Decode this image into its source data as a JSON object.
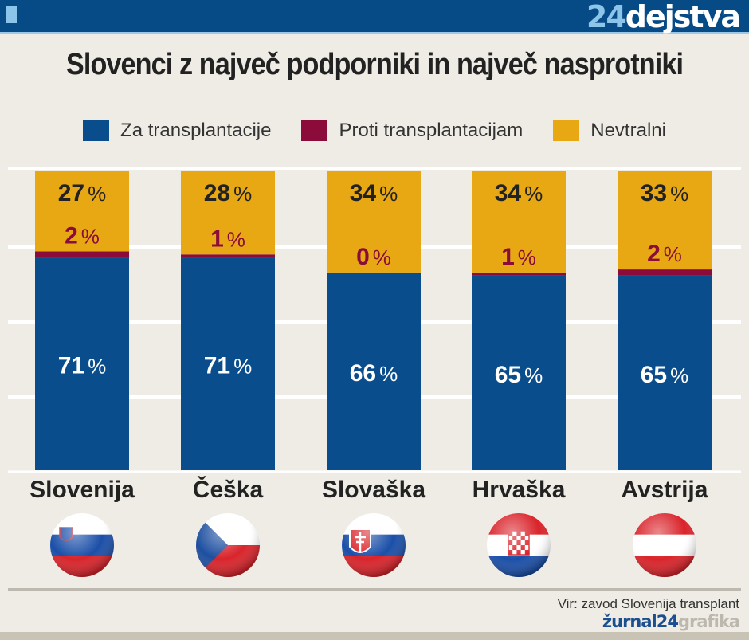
{
  "header": {
    "brand_number": "24",
    "brand_word": "dejstva"
  },
  "title": "Slovenci z največ podporniki in največ nasprotniki",
  "colors": {
    "za": "#0a4d8c",
    "proti": "#8b0b3b",
    "nevtralni": "#e7a814",
    "header": "#064a86"
  },
  "chart_data": {
    "type": "bar",
    "stacked": true,
    "orientation": "vertical",
    "title": "Slovenci z največ podporniki in največ nasprotniki",
    "categories": [
      "Slovenija",
      "Češka",
      "Slovaška",
      "Hrvaška",
      "Avstrija"
    ],
    "series": [
      {
        "name": "Za transplantacije",
        "values": [
          71,
          71,
          66,
          65,
          65
        ]
      },
      {
        "name": "Proti transplantacijam",
        "values": [
          2,
          1,
          0,
          1,
          2
        ]
      },
      {
        "name": "Nevtralni",
        "values": [
          27,
          28,
          34,
          34,
          33
        ]
      }
    ],
    "unit": "%",
    "ylim": [
      0,
      100
    ],
    "grid": true,
    "legend": "top"
  },
  "flags": [
    "slovenia-flag-icon",
    "czech-flag-icon",
    "slovakia-flag-icon",
    "croatia-flag-icon",
    "austria-flag-icon"
  ],
  "footer": {
    "source": "Vir: zavod Slovenija transplant",
    "logo_a": "žurnal24",
    "logo_b": "grafika"
  }
}
